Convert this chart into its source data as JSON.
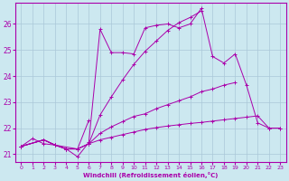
{
  "xlabel": "Windchill (Refroidissement éolien,°C)",
  "bg_color": "#cce8f0",
  "line_color": "#aa00aa",
  "grid_color": "#aac8d8",
  "xlim": [
    -0.5,
    23.5
  ],
  "ylim": [
    20.7,
    26.8
  ],
  "xticks": [
    0,
    1,
    2,
    3,
    4,
    5,
    6,
    7,
    8,
    9,
    10,
    11,
    12,
    13,
    14,
    15,
    16,
    17,
    18,
    19,
    20,
    21,
    22,
    23
  ],
  "yticks": [
    21,
    22,
    23,
    24,
    25,
    26
  ],
  "series": [
    {
      "x": [
        0,
        1,
        2,
        3,
        4,
        5,
        6,
        7,
        8,
        9,
        10,
        11,
        12,
        13,
        14,
        15,
        16,
        17,
        18,
        19,
        20,
        21,
        22,
        23
      ],
      "y": [
        21.3,
        21.6,
        21.4,
        21.35,
        21.2,
        20.9,
        21.45,
        25.8,
        24.9,
        24.9,
        24.85,
        25.85,
        25.95,
        26.0,
        25.85,
        26.0,
        26.6,
        24.75,
        24.5,
        24.85,
        23.65,
        22.2,
        22.0,
        22.0
      ]
    },
    {
      "x": [
        0,
        2,
        3,
        5,
        6
      ],
      "y": [
        21.3,
        21.55,
        21.35,
        21.2,
        22.3
      ]
    },
    {
      "x": [
        0,
        2,
        3,
        4,
        5,
        6,
        7,
        8,
        9,
        10,
        11,
        12,
        13,
        14,
        15,
        16
      ],
      "y": [
        21.3,
        21.55,
        21.35,
        21.2,
        21.2,
        21.4,
        22.5,
        23.2,
        23.85,
        24.45,
        24.95,
        25.35,
        25.75,
        26.05,
        26.25,
        26.5
      ]
    },
    {
      "x": [
        0,
        2,
        3,
        4,
        5,
        6,
        7,
        8,
        9,
        10,
        11,
        12,
        13,
        14,
        15,
        16,
        17,
        18,
        19
      ],
      "y": [
        21.3,
        21.55,
        21.35,
        21.2,
        21.2,
        21.4,
        21.8,
        22.05,
        22.25,
        22.45,
        22.55,
        22.75,
        22.9,
        23.05,
        23.2,
        23.4,
        23.5,
        23.65,
        23.75
      ]
    },
    {
      "x": [
        0,
        2,
        3,
        4,
        5,
        6,
        7,
        8,
        9,
        10,
        11,
        12,
        13,
        14,
        15,
        16,
        17,
        18,
        19,
        20,
        21,
        22,
        23
      ],
      "y": [
        21.3,
        21.55,
        21.35,
        21.2,
        21.2,
        21.4,
        21.55,
        21.65,
        21.75,
        21.85,
        21.95,
        22.02,
        22.08,
        22.13,
        22.18,
        22.22,
        22.27,
        22.32,
        22.37,
        22.42,
        22.47,
        22.0,
        22.0
      ]
    }
  ]
}
